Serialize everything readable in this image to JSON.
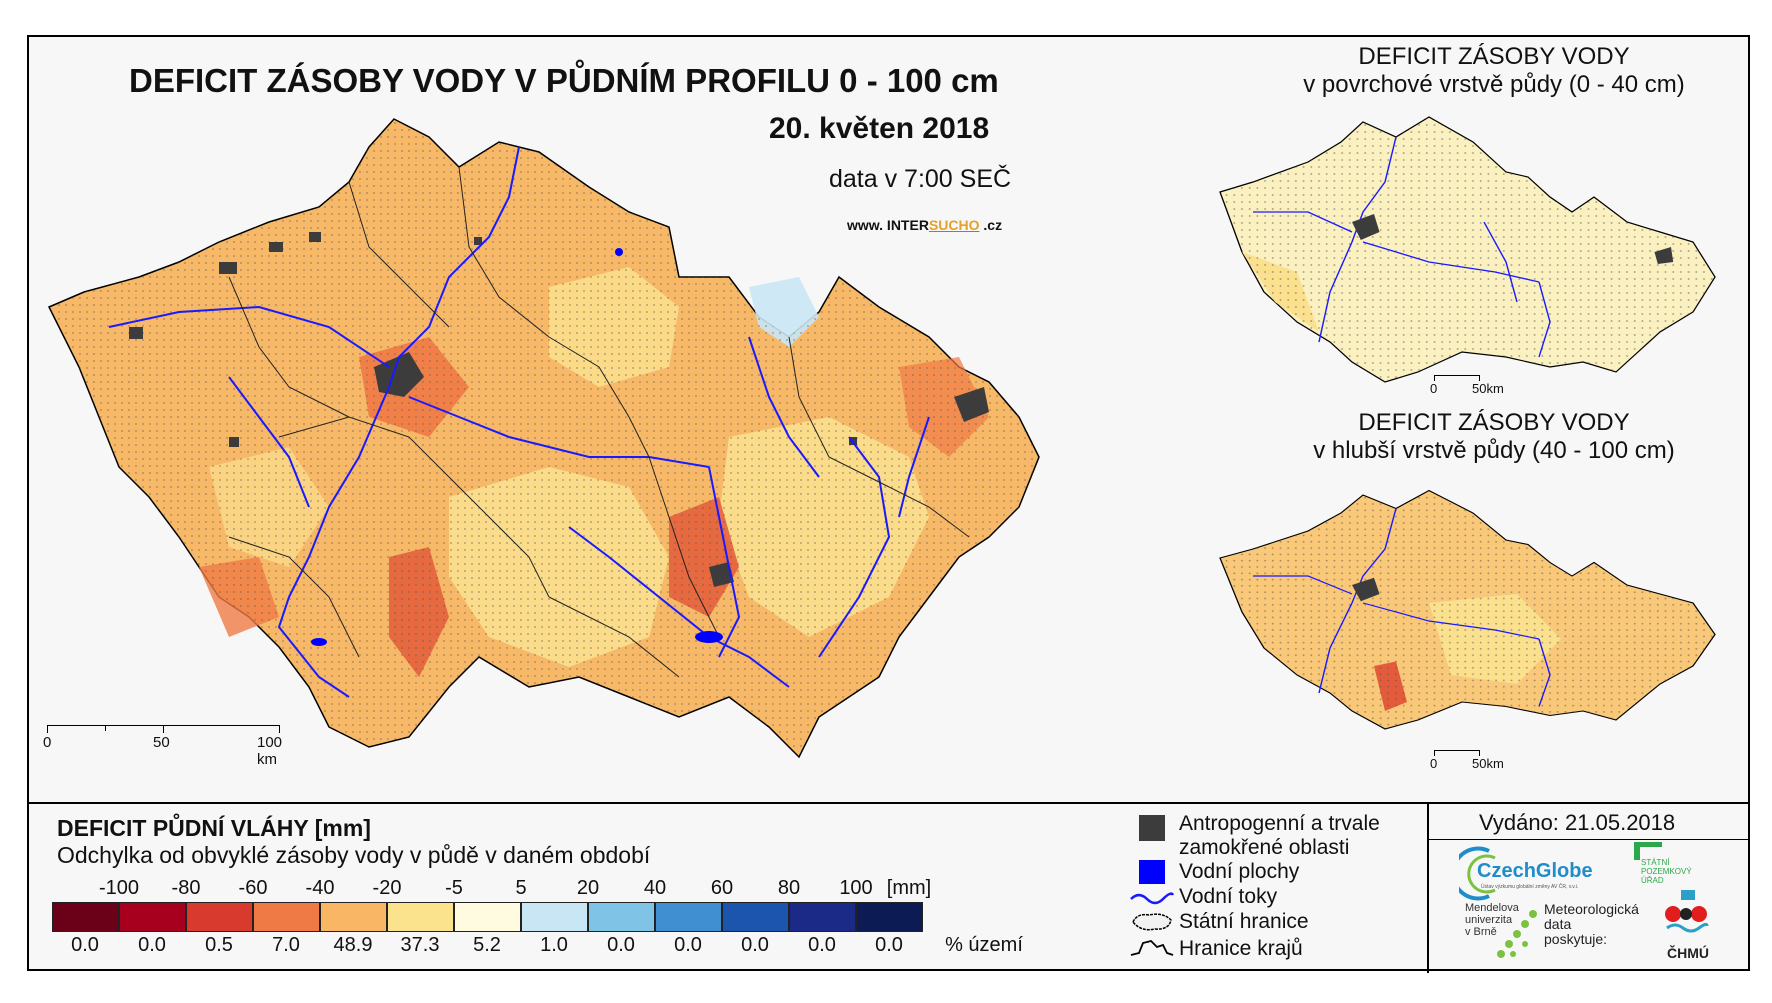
{
  "main_map": {
    "title": "DEFICIT ZÁSOBY VODY V PŮDNÍM PROFILU 0 - 100 cm",
    "date": "20. květen 2018",
    "time": "data v 7:00 SEČ",
    "web_prefix": "www. INTER",
    "web_brand": "SUCHO",
    "web_suffix": " .cz",
    "scale": {
      "labels": [
        "0",
        "50",
        "100 km"
      ]
    }
  },
  "mini_maps": [
    {
      "title_line1": "DEFICIT ZÁSOBY VODY",
      "title_line2": "v povrchové vrstvě půdy (0 - 40 cm)",
      "scale_labels": [
        "0",
        "50km"
      ]
    },
    {
      "title_line1": "DEFICIT ZÁSOBY VODY",
      "title_line2": "v hlubší vrstvě půdy (40 - 100 cm)",
      "scale_labels": [
        "0",
        "50km"
      ]
    }
  ],
  "legend": {
    "title": "DEFICIT PŮDNÍ VLÁHY [mm]",
    "subtitle": "Odchylka od obvyklé zásoby vody v půdě v daném období",
    "ticks": [
      "-100",
      "-80",
      "-60",
      "-40",
      "-20",
      "-5",
      "5",
      "20",
      "40",
      "60",
      "80",
      "100"
    ],
    "tick_unit": "[mm]",
    "classes": [
      {
        "color": "#6b0019",
        "percent": "0.0"
      },
      {
        "color": "#a7001f",
        "percent": "0.0"
      },
      {
        "color": "#d93a2e",
        "percent": "0.5"
      },
      {
        "color": "#f07a45",
        "percent": "7.0"
      },
      {
        "color": "#f9b765",
        "percent": "48.9"
      },
      {
        "color": "#fbe38e",
        "percent": "37.3"
      },
      {
        "color": "#fffbe0",
        "percent": "5.2"
      },
      {
        "color": "#c9e6f4",
        "percent": "1.0"
      },
      {
        "color": "#7fc4e6",
        "percent": "0.0"
      },
      {
        "color": "#3f8fd1",
        "percent": "0.0"
      },
      {
        "color": "#1b55ae",
        "percent": "0.0"
      },
      {
        "color": "#1a2a86",
        "percent": "0.0"
      },
      {
        "color": "#0d1b54",
        "percent": "0.0"
      }
    ],
    "percent_unit": "% území"
  },
  "key": {
    "anthropogenic_line1": "Antropogenní a trvale",
    "anthropogenic_line2": "zamokřené oblasti",
    "water_bodies": "Vodní plochy",
    "rivers": "Vodní toky",
    "state_border": "Státní hranice",
    "region_border": "Hranice krajů",
    "anthropogenic_color": "#3c3c3c",
    "water_color": "#0000ff"
  },
  "issued": "Vydáno: 21.05.2018",
  "logos": {
    "czechglobe": "CzechGlobe",
    "czechglobe_sub": "Ústav výzkumu globální změny AV ČR, v.v.i.",
    "spu_line1": "STÁTNÍ",
    "spu_line2": "POZEMKOVÝ",
    "spu_line3": "ÚŘAD",
    "mendel_line1": "Mendelova",
    "mendel_line2": "univerzita",
    "mendel_line3": "v Brně",
    "chmu_caption_line1": "Meteorologická",
    "chmu_caption_line2": "data",
    "chmu_caption_line3": "poskytuje:",
    "chmu": "ČHMÚ"
  }
}
